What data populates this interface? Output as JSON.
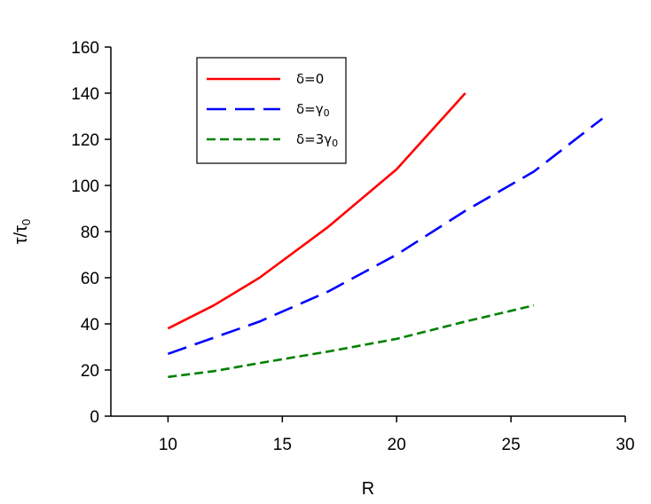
{
  "chart_data": {
    "type": "line",
    "xlabel": "R",
    "xlim": [
      7.5,
      30
    ],
    "ylim": [
      0,
      160
    ],
    "xticks": [
      10,
      15,
      20,
      25,
      30
    ],
    "yticks": [
      0,
      20,
      40,
      60,
      80,
      100,
      120,
      140,
      160
    ],
    "grid": false,
    "legend_position": "top-left",
    "ylabel": {
      "base": "τ/τ",
      "sub": "0"
    },
    "series": [
      {
        "label": {
          "base": "δ=0",
          "sub": ""
        },
        "color": "#ff0000",
        "dash": "solid",
        "x": [
          10,
          12,
          14,
          17,
          20,
          23
        ],
        "y": [
          38,
          48,
          60,
          82,
          107,
          140
        ]
      },
      {
        "label": {
          "base": "δ=γ",
          "sub": "0"
        },
        "color": "#0000ff",
        "dash": "long-dash",
        "x": [
          10,
          12,
          14,
          17,
          20,
          23,
          26,
          29
        ],
        "y": [
          27,
          34,
          41,
          54,
          70,
          89,
          106,
          129
        ]
      },
      {
        "label": {
          "base": "δ=3γ",
          "sub": "0"
        },
        "color": "#008000",
        "dash": "short-dash",
        "x": [
          10,
          12,
          14,
          17,
          20,
          23,
          26
        ],
        "y": [
          17,
          19.5,
          23,
          28,
          33.5,
          41,
          48
        ]
      }
    ]
  }
}
